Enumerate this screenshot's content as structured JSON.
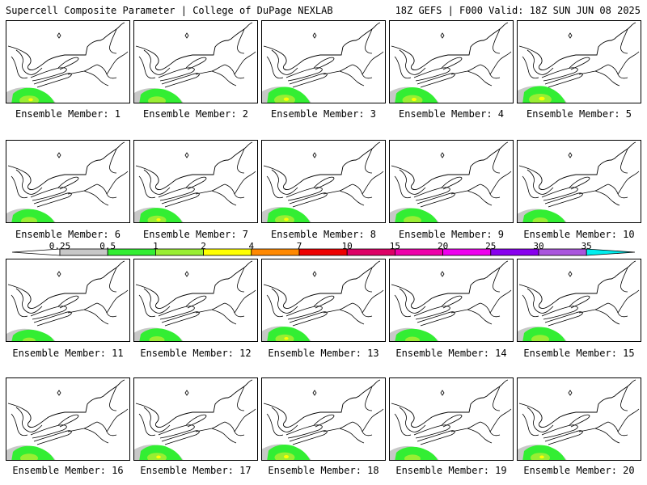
{
  "header": {
    "left": "Supercell Composite Parameter | College of DuPage NEXLAB",
    "right": "18Z GEFS | F000 Valid: 18Z SUN JUN 08 2025"
  },
  "members": [
    {
      "label": "Ensemble Member: 1",
      "intensity": 0.8
    },
    {
      "label": "Ensemble Member: 2",
      "intensity": 0.7
    },
    {
      "label": "Ensemble Member: 3",
      "intensity": 0.9
    },
    {
      "label": "Ensemble Member: 4",
      "intensity": 0.85
    },
    {
      "label": "Ensemble Member: 5",
      "intensity": 1.0
    },
    {
      "label": "Ensemble Member: 6",
      "intensity": 0.6
    },
    {
      "label": "Ensemble Member: 7",
      "intensity": 0.75
    },
    {
      "label": "Ensemble Member: 8",
      "intensity": 0.8
    },
    {
      "label": "Ensemble Member: 9",
      "intensity": 0.7
    },
    {
      "label": "Ensemble Member: 10",
      "intensity": 0.55
    },
    {
      "label": "Ensemble Member: 11",
      "intensity": 0.4
    },
    {
      "label": "Ensemble Member: 12",
      "intensity": 0.55
    },
    {
      "label": "Ensemble Member: 13",
      "intensity": 0.75
    },
    {
      "label": "Ensemble Member: 14",
      "intensity": 0.5
    },
    {
      "label": "Ensemble Member: 15",
      "intensity": 0.7
    },
    {
      "label": "Ensemble Member: 16",
      "intensity": 0.7
    },
    {
      "label": "Ensemble Member: 17",
      "intensity": 0.8
    },
    {
      "label": "Ensemble Member: 18",
      "intensity": 0.85
    },
    {
      "label": "Ensemble Member: 19",
      "intensity": 0.6
    },
    {
      "label": "Ensemble Member: 20",
      "intensity": 0.8
    }
  ],
  "colorbar": {
    "ticks": [
      "0.25",
      "0.5",
      "1",
      "2",
      "4",
      "7",
      "10",
      "15",
      "20",
      "25",
      "30",
      "35"
    ],
    "colors": [
      "#c8c8c8",
      "#33ee33",
      "#99ee33",
      "#ffff00",
      "#ff8800",
      "#ee0000",
      "#dd0066",
      "#ee00aa",
      "#ee00ee",
      "#8800ee",
      "#aa55dd",
      "#00eeee"
    ]
  }
}
